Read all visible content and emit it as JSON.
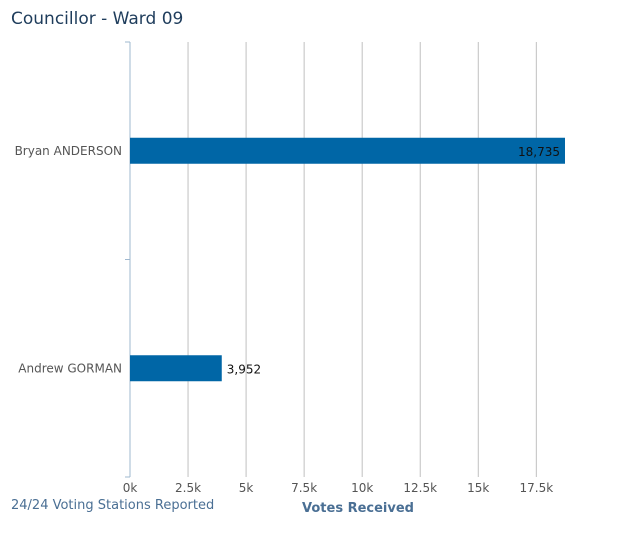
{
  "header": {
    "title": "Councillor - Ward 09"
  },
  "footer": {
    "stations": "24/24 Voting Stations Reported"
  },
  "colors": {
    "bar": "#0066a6",
    "grid": "#c0c0c0",
    "axis": "#9fb8cf"
  },
  "chart_data": {
    "type": "bar",
    "orientation": "horizontal",
    "title": "Councillor - Ward 09",
    "xlabel": "Votes Received",
    "ylabel": "",
    "categories": [
      "Bryan ANDERSON",
      "Andrew GORMAN"
    ],
    "values": [
      18735,
      3952
    ],
    "data_labels": [
      "18,735",
      "3,952"
    ],
    "xlim": [
      0,
      18735
    ],
    "xticks": [
      0,
      2500,
      5000,
      7500,
      10000,
      12500,
      15000,
      17500
    ],
    "xtick_labels": [
      "0k",
      "2.5k",
      "5k",
      "7.5k",
      "10k",
      "12.5k",
      "15k",
      "17.5k"
    ],
    "grid": true,
    "legend": "none"
  }
}
